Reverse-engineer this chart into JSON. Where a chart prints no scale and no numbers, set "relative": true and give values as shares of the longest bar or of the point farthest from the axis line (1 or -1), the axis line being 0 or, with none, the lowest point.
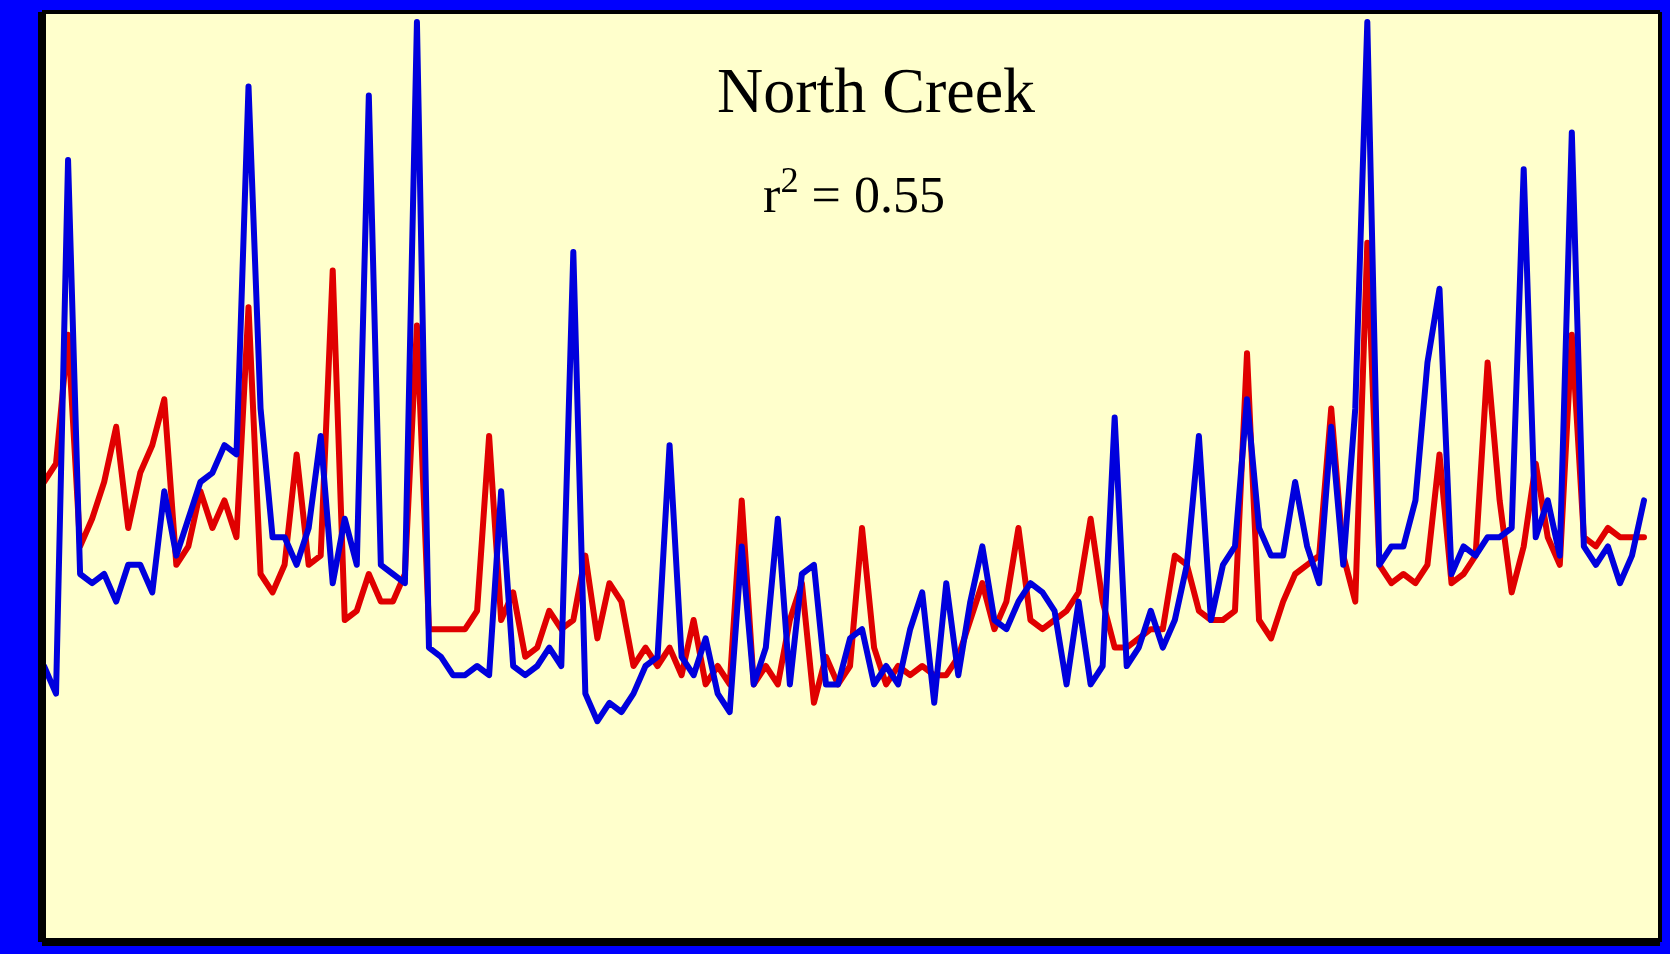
{
  "chart_data": {
    "type": "line",
    "title": "North Creek",
    "annotations": [
      "r$^{2}$ = 0.55"
    ],
    "relative": true,
    "marker": "none",
    "line_style": "solid",
    "categories": [
      null,
      null,
      null,
      null,
      null,
      null,
      null,
      null,
      null,
      null,
      null,
      null,
      null,
      null,
      null,
      null,
      null,
      null,
      null,
      null,
      null,
      null,
      null,
      null,
      null,
      null,
      null,
      null,
      null,
      null,
      null,
      null,
      null,
      null,
      null,
      null,
      null,
      null,
      null,
      null,
      null,
      null,
      null,
      null,
      null,
      null,
      null,
      null,
      null,
      null,
      null,
      null,
      null,
      null,
      null,
      null,
      null,
      null,
      null,
      null,
      null,
      null,
      null,
      null,
      null,
      null,
      null,
      null,
      null,
      null,
      null,
      null,
      null,
      null,
      null,
      null,
      null,
      null,
      null,
      null,
      null,
      null,
      null,
      null,
      null,
      null,
      null,
      null,
      null,
      null,
      null,
      null,
      null,
      null,
      null,
      null,
      null,
      null,
      null,
      null,
      null,
      null,
      null,
      null,
      null,
      null,
      null,
      null,
      null,
      null,
      null,
      null,
      null,
      null,
      null,
      null,
      null,
      null,
      null,
      null,
      null,
      null,
      null,
      null,
      null,
      null,
      null,
      null,
      null,
      null,
      null,
      null,
      null,
      null
    ],
    "series": [
      {
        "color": "#e00000",
        "values": [
          0.5,
          0.52,
          0.66,
          0.43,
          0.46,
          0.5,
          0.56,
          0.45,
          0.51,
          0.54,
          0.59,
          0.41,
          0.43,
          0.49,
          0.45,
          0.48,
          0.44,
          0.69,
          0.4,
          0.38,
          0.41,
          0.53,
          0.41,
          0.42,
          0.73,
          0.35,
          0.36,
          0.4,
          0.37,
          0.37,
          0.4,
          0.67,
          0.34,
          0.34,
          0.34,
          0.34,
          0.36,
          0.55,
          0.35,
          0.38,
          0.31,
          0.32,
          0.36,
          0.34,
          0.35,
          0.42,
          0.33,
          0.39,
          0.37,
          0.3,
          0.32,
          0.3,
          0.32,
          0.29,
          0.35,
          0.28,
          0.3,
          0.28,
          0.48,
          0.28,
          0.3,
          0.28,
          0.35,
          0.39,
          0.26,
          0.31,
          0.28,
          0.3,
          0.45,
          0.32,
          0.28,
          0.3,
          0.29,
          0.3,
          0.29,
          0.29,
          0.31,
          0.35,
          0.39,
          0.34,
          0.37,
          0.45,
          0.35,
          0.34,
          0.35,
          0.36,
          0.38,
          0.46,
          0.37,
          0.32,
          0.32,
          0.33,
          0.34,
          0.34,
          0.42,
          0.41,
          0.36,
          0.35,
          0.35,
          0.36,
          0.64,
          0.35,
          0.33,
          0.37,
          0.4,
          0.41,
          0.42,
          0.58,
          0.42,
          0.37,
          0.76,
          0.41,
          0.39,
          0.4,
          0.39,
          0.41,
          0.53,
          0.39,
          0.4,
          0.42,
          0.63,
          0.48,
          0.38,
          0.43,
          0.52,
          0.44,
          0.41,
          0.66,
          0.44,
          0.43,
          0.45,
          0.44,
          0.44,
          0.44
        ]
      },
      {
        "color": "#0000dd",
        "values": [
          0.3,
          0.27,
          0.85,
          0.4,
          0.39,
          0.4,
          0.37,
          0.41,
          0.41,
          0.38,
          0.49,
          0.42,
          0.46,
          0.5,
          0.51,
          0.54,
          0.53,
          0.93,
          0.58,
          0.44,
          0.44,
          0.41,
          0.45,
          0.55,
          0.39,
          0.46,
          0.41,
          0.92,
          0.41,
          0.4,
          0.39,
          1.0,
          0.32,
          0.31,
          0.29,
          0.29,
          0.3,
          0.29,
          0.49,
          0.3,
          0.29,
          0.3,
          0.32,
          0.3,
          0.75,
          0.27,
          0.24,
          0.26,
          0.25,
          0.27,
          0.3,
          0.31,
          0.54,
          0.31,
          0.29,
          0.33,
          0.27,
          0.25,
          0.43,
          0.28,
          0.32,
          0.46,
          0.28,
          0.4,
          0.41,
          0.28,
          0.28,
          0.33,
          0.34,
          0.28,
          0.3,
          0.28,
          0.34,
          0.38,
          0.26,
          0.39,
          0.29,
          0.37,
          0.43,
          0.35,
          0.34,
          0.37,
          0.39,
          0.38,
          0.36,
          0.28,
          0.37,
          0.28,
          0.3,
          0.57,
          0.3,
          0.32,
          0.36,
          0.32,
          0.35,
          0.41,
          0.55,
          0.35,
          0.41,
          0.43,
          0.59,
          0.45,
          0.42,
          0.42,
          0.5,
          0.43,
          0.39,
          0.56,
          0.41,
          0.58,
          1.0,
          0.41,
          0.43,
          0.43,
          0.48,
          0.63,
          0.71,
          0.4,
          0.43,
          0.42,
          0.44,
          0.44,
          0.45,
          0.84,
          0.44,
          0.48,
          0.42,
          0.88,
          0.43,
          0.41,
          0.43,
          0.39,
          0.42,
          0.48
        ]
      }
    ]
  }
}
